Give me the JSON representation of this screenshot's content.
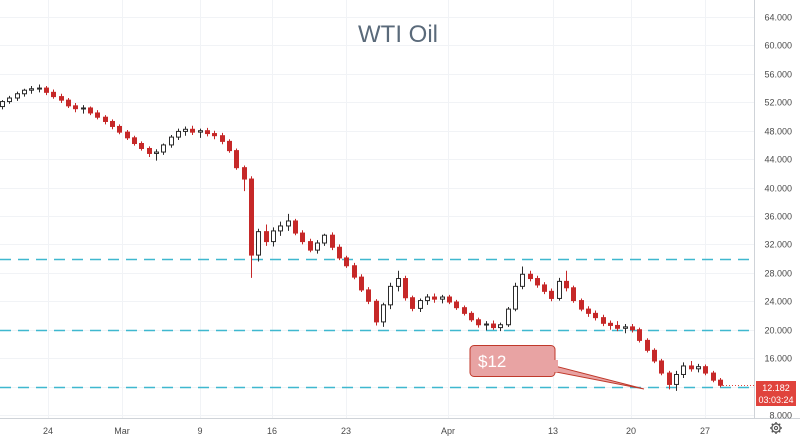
{
  "chart_data": {
    "type": "candlestick",
    "title": "WTI Oil",
    "xlabel": "",
    "ylabel": "",
    "x_tick_labels": [
      "24",
      "Mar",
      "9",
      "16",
      "23",
      "Apr",
      "13",
      "20",
      "27"
    ],
    "y_ticks": [
      8,
      12,
      16,
      20,
      24,
      28,
      32,
      36,
      40,
      44,
      48,
      52,
      56,
      60,
      64
    ],
    "y_tick_labels": [
      "8.000",
      "12.000",
      "16.000",
      "20.000",
      "24.000",
      "28.000",
      "32.000",
      "36.000",
      "40.000",
      "44.000",
      "48.000",
      "52.000",
      "56.000",
      "60.000",
      "64.000"
    ],
    "ylim": [
      6.9,
      66.0
    ],
    "grid": true,
    "series": [
      {
        "values": [
          [
            51.4,
            52.3,
            51.0,
            52.1
          ],
          [
            52.1,
            52.9,
            51.8,
            52.6
          ],
          [
            52.6,
            53.5,
            52.2,
            53.2
          ],
          [
            53.2,
            53.9,
            52.8,
            53.7
          ],
          [
            53.7,
            54.3,
            53.2,
            53.9
          ],
          [
            53.9,
            54.5,
            53.4,
            54.0
          ],
          [
            54.0,
            54.3,
            53.0,
            53.4
          ],
          [
            53.4,
            53.8,
            52.5,
            52.8
          ],
          [
            52.8,
            53.2,
            51.9,
            52.3
          ],
          [
            52.3,
            52.6,
            51.2,
            51.5
          ],
          [
            51.5,
            51.9,
            50.6,
            51.1
          ],
          [
            51.1,
            51.6,
            50.4,
            51.2
          ],
          [
            51.2,
            51.4,
            50.2,
            50.5
          ],
          [
            50.5,
            50.9,
            49.6,
            49.9
          ],
          [
            49.9,
            50.2,
            48.9,
            49.3
          ],
          [
            49.3,
            49.6,
            48.2,
            48.6
          ],
          [
            48.6,
            48.9,
            47.5,
            47.8
          ],
          [
            47.8,
            48.1,
            46.7,
            47.0
          ],
          [
            47.0,
            47.3,
            45.9,
            46.2
          ],
          [
            46.2,
            46.5,
            45.2,
            45.5
          ],
          [
            45.5,
            45.8,
            44.3,
            44.8
          ],
          [
            44.8,
            45.4,
            43.8,
            45.0
          ],
          [
            45.0,
            46.2,
            44.6,
            46.0
          ],
          [
            46.0,
            47.4,
            45.6,
            47.1
          ],
          [
            47.1,
            48.3,
            46.7,
            47.9
          ],
          [
            47.9,
            48.6,
            47.3,
            48.2
          ],
          [
            48.2,
            48.7,
            47.4,
            47.8
          ],
          [
            47.8,
            48.3,
            47.0,
            48.0
          ],
          [
            48.0,
            48.4,
            47.2,
            47.6
          ],
          [
            47.6,
            48.0,
            46.8,
            47.3
          ],
          [
            47.3,
            47.7,
            46.1,
            46.5
          ],
          [
            46.5,
            46.8,
            44.9,
            45.2
          ],
          [
            45.2,
            45.5,
            42.5,
            42.8
          ],
          [
            42.8,
            43.1,
            39.5,
            41.2
          ],
          [
            41.2,
            41.6,
            27.3,
            30.5
          ],
          [
            30.5,
            34.2,
            29.6,
            33.8
          ],
          [
            33.8,
            34.8,
            31.8,
            32.4
          ],
          [
            32.4,
            34.4,
            31.7,
            33.9
          ],
          [
            33.9,
            35.2,
            33.2,
            34.6
          ],
          [
            34.6,
            36.3,
            33.9,
            35.3
          ],
          [
            35.3,
            35.6,
            33.3,
            33.6
          ],
          [
            33.6,
            34.0,
            32.0,
            32.4
          ],
          [
            32.4,
            32.8,
            30.9,
            31.2
          ],
          [
            31.2,
            32.6,
            30.7,
            32.2
          ],
          [
            32.2,
            33.5,
            31.8,
            33.3
          ],
          [
            33.3,
            33.7,
            31.2,
            31.6
          ],
          [
            31.6,
            32.0,
            29.8,
            30.1
          ],
          [
            30.1,
            30.4,
            28.7,
            29.0
          ],
          [
            29.0,
            29.4,
            27.1,
            27.4
          ],
          [
            27.4,
            27.8,
            25.3,
            25.6
          ],
          [
            25.6,
            26.0,
            23.6,
            24.0
          ],
          [
            24.0,
            24.3,
            20.6,
            21.1
          ],
          [
            21.1,
            23.8,
            20.4,
            23.5
          ],
          [
            23.5,
            26.6,
            22.9,
            26.1
          ],
          [
            26.1,
            28.3,
            25.4,
            27.2
          ],
          [
            27.2,
            27.6,
            24.1,
            24.5
          ],
          [
            24.5,
            24.8,
            22.6,
            23.0
          ],
          [
            23.0,
            24.4,
            22.5,
            24.1
          ],
          [
            24.1,
            25.0,
            23.5,
            24.6
          ],
          [
            24.6,
            25.1,
            23.8,
            24.3
          ],
          [
            24.3,
            24.9,
            23.7,
            24.6
          ],
          [
            24.6,
            24.9,
            23.6,
            23.9
          ],
          [
            23.9,
            24.2,
            22.8,
            23.1
          ],
          [
            23.1,
            23.4,
            22.0,
            22.3
          ],
          [
            22.3,
            22.6,
            21.1,
            21.4
          ],
          [
            21.4,
            21.7,
            20.3,
            20.7
          ],
          [
            20.7,
            21.2,
            19.9,
            20.8
          ],
          [
            20.8,
            21.3,
            20.0,
            20.3
          ],
          [
            20.3,
            21.0,
            19.8,
            20.7
          ],
          [
            20.7,
            23.2,
            20.4,
            22.9
          ],
          [
            22.9,
            26.6,
            22.6,
            26.1
          ],
          [
            26.1,
            28.9,
            25.7,
            27.8
          ],
          [
            27.8,
            28.3,
            26.8,
            27.2
          ],
          [
            27.2,
            27.6,
            25.9,
            26.3
          ],
          [
            26.3,
            26.7,
            25.0,
            25.4
          ],
          [
            25.4,
            25.8,
            24.0,
            24.4
          ],
          [
            24.4,
            27.3,
            24.1,
            26.8
          ],
          [
            26.8,
            28.3,
            25.4,
            25.9
          ],
          [
            25.9,
            26.2,
            23.8,
            24.1
          ],
          [
            24.1,
            24.4,
            22.6,
            22.9
          ],
          [
            22.9,
            23.3,
            21.8,
            22.3
          ],
          [
            22.3,
            22.7,
            21.3,
            21.7
          ],
          [
            21.7,
            22.1,
            20.5,
            20.9
          ],
          [
            20.9,
            21.3,
            20.0,
            20.6
          ],
          [
            20.6,
            21.2,
            19.8,
            20.2
          ],
          [
            20.2,
            20.8,
            19.5,
            20.4
          ],
          [
            20.4,
            20.8,
            19.6,
            20.0
          ],
          [
            20.0,
            20.3,
            18.2,
            18.5
          ],
          [
            18.5,
            18.8,
            16.8,
            17.1
          ],
          [
            17.1,
            17.4,
            15.3,
            15.6
          ],
          [
            15.6,
            15.9,
            13.6,
            13.9
          ],
          [
            13.9,
            14.2,
            11.6,
            12.3
          ],
          [
            12.3,
            14.2,
            11.4,
            13.7
          ],
          [
            13.7,
            15.4,
            13.2,
            14.9
          ],
          [
            14.9,
            15.6,
            14.1,
            14.5
          ],
          [
            14.5,
            15.2,
            14.0,
            14.8
          ],
          [
            14.8,
            15.1,
            13.6,
            13.9
          ],
          [
            13.9,
            14.2,
            12.6,
            12.9
          ],
          [
            12.9,
            13.2,
            11.9,
            12.182
          ]
        ],
        "value_format": "[open, high, low, close]"
      }
    ],
    "reference_lines": [
      12,
      20,
      30
    ],
    "annotations": [
      "$12"
    ],
    "last_price_label": "12.182",
    "countdown_label": "03:03:24"
  },
  "colors": {
    "up": "#2b2b2b",
    "down": "#c62828",
    "hline": "#3fb8cf",
    "callout_fill": "#e8a3a3",
    "callout_stroke": "#c0392b",
    "price_tag": "#e0433c",
    "grid": "#f1f3f6",
    "axis": "#cfd3d8"
  },
  "icons": {
    "settings": "gear-icon"
  }
}
